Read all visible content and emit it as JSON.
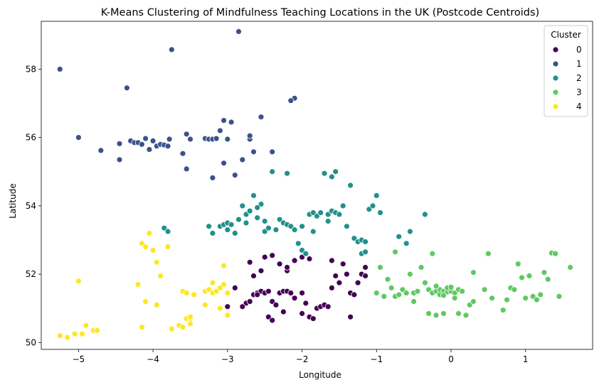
{
  "chart_data": {
    "type": "scatter",
    "title": "K-Means Clustering of Mindfulness Teaching Locations in the UK (Postcode Centroids)",
    "xlabel": "Longitude",
    "ylabel": "Latitude",
    "xlim": [
      -5.5,
      1.9
    ],
    "ylim": [
      49.8,
      59.4
    ],
    "xticks": [
      -5,
      -4,
      -3,
      -2,
      -1,
      0,
      1
    ],
    "yticks": [
      50,
      52,
      54,
      56,
      58
    ],
    "xtick_labels": [
      "−5",
      "−4",
      "−3",
      "−2",
      "−1",
      "0",
      "1"
    ],
    "ytick_labels": [
      "50",
      "52",
      "54",
      "56",
      "58"
    ],
    "grid": false,
    "legend": {
      "title": "Cluster",
      "position": "top-right"
    },
    "series": [
      {
        "name": "0",
        "color": "#440154",
        "points": [
          [
            -2.9,
            51.6
          ],
          [
            -2.75,
            51.15
          ],
          [
            -2.7,
            51.2
          ],
          [
            -2.65,
            51.4
          ],
          [
            -2.6,
            51.45
          ],
          [
            -2.55,
            51.5
          ],
          [
            -2.5,
            51.45
          ],
          [
            -2.45,
            51.5
          ],
          [
            -2.4,
            51.2
          ],
          [
            -2.35,
            51.1
          ],
          [
            -2.3,
            51.45
          ],
          [
            -2.25,
            51.5
          ],
          [
            -2.2,
            51.5
          ],
          [
            -2.15,
            51.45
          ],
          [
            -2.1,
            51.3
          ],
          [
            -2.0,
            51.45
          ],
          [
            -1.95,
            51.15
          ],
          [
            -1.9,
            50.75
          ],
          [
            -1.85,
            50.7
          ],
          [
            -1.8,
            51.0
          ],
          [
            -1.75,
            51.05
          ],
          [
            -1.7,
            51.1
          ],
          [
            -1.65,
            51.05
          ],
          [
            -1.6,
            51.6
          ],
          [
            -1.55,
            51.95
          ],
          [
            -1.5,
            51.75
          ],
          [
            -1.45,
            52.3
          ],
          [
            -1.4,
            52.0
          ],
          [
            -1.35,
            51.45
          ],
          [
            -1.3,
            51.4
          ],
          [
            -1.25,
            51.75
          ],
          [
            -1.2,
            52.0
          ],
          [
            -1.35,
            50.75
          ],
          [
            -2.5,
            52.5
          ],
          [
            -2.4,
            52.55
          ],
          [
            -2.3,
            52.3
          ],
          [
            -2.2,
            52.1
          ],
          [
            -2.1,
            52.4
          ],
          [
            -2.0,
            52.5
          ],
          [
            -1.9,
            52.45
          ],
          [
            -2.7,
            52.35
          ],
          [
            -2.65,
            51.95
          ],
          [
            -2.55,
            52.1
          ],
          [
            -2.45,
            50.75
          ],
          [
            -2.4,
            50.65
          ],
          [
            -2.0,
            50.85
          ],
          [
            -2.25,
            50.9
          ],
          [
            -2.8,
            51.05
          ],
          [
            -3.0,
            51.05
          ],
          [
            -2.2,
            52.2
          ],
          [
            -2.6,
            51.4
          ],
          [
            -1.15,
            52.2
          ],
          [
            -1.15,
            51.95
          ],
          [
            -1.6,
            52.4
          ]
        ]
      },
      {
        "name": "1",
        "color": "#3b528b",
        "points": [
          [
            -5.25,
            58.0
          ],
          [
            -5.0,
            56.0
          ],
          [
            -4.7,
            55.62
          ],
          [
            -4.45,
            55.82
          ],
          [
            -4.45,
            55.35
          ],
          [
            -4.35,
            57.45
          ],
          [
            -4.3,
            55.9
          ],
          [
            -4.25,
            55.85
          ],
          [
            -4.2,
            55.85
          ],
          [
            -4.15,
            55.8
          ],
          [
            -4.1,
            55.97
          ],
          [
            -4.05,
            55.65
          ],
          [
            -4.0,
            55.9
          ],
          [
            -3.95,
            55.75
          ],
          [
            -3.9,
            55.8
          ],
          [
            -3.85,
            55.78
          ],
          [
            -3.8,
            55.75
          ],
          [
            -3.78,
            55.95
          ],
          [
            -3.75,
            58.57
          ],
          [
            -3.6,
            55.53
          ],
          [
            -3.55,
            56.1
          ],
          [
            -3.55,
            55.08
          ],
          [
            -3.3,
            55.97
          ],
          [
            -3.25,
            55.95
          ],
          [
            -3.2,
            55.95
          ],
          [
            -3.15,
            55.97
          ],
          [
            -3.2,
            54.82
          ],
          [
            -3.05,
            56.5
          ],
          [
            -3.05,
            55.25
          ],
          [
            -3.0,
            55.95
          ],
          [
            -2.95,
            56.45
          ],
          [
            -2.9,
            54.9
          ],
          [
            -2.85,
            59.1
          ],
          [
            -2.8,
            55.35
          ],
          [
            -2.7,
            55.95
          ],
          [
            -2.7,
            56.05
          ],
          [
            -2.65,
            55.58
          ],
          [
            -2.55,
            56.6
          ],
          [
            -2.4,
            55.58
          ],
          [
            -2.1,
            57.15
          ],
          [
            -2.15,
            57.08
          ],
          [
            -3.1,
            56.2
          ],
          [
            -3.5,
            55.95
          ]
        ]
      },
      {
        "name": "2",
        "color": "#21918c",
        "points": [
          [
            -3.85,
            53.35
          ],
          [
            -3.8,
            53.25
          ],
          [
            -3.25,
            53.4
          ],
          [
            -3.2,
            53.2
          ],
          [
            -3.1,
            53.4
          ],
          [
            -3.05,
            53.45
          ],
          [
            -3.0,
            53.5
          ],
          [
            -2.95,
            53.45
          ],
          [
            -2.9,
            53.2
          ],
          [
            -2.85,
            53.6
          ],
          [
            -2.8,
            54.0
          ],
          [
            -2.75,
            53.75
          ],
          [
            -2.7,
            53.85
          ],
          [
            -2.65,
            54.3
          ],
          [
            -2.6,
            53.65
          ],
          [
            -2.55,
            54.05
          ],
          [
            -2.5,
            53.25
          ],
          [
            -2.45,
            53.35
          ],
          [
            -2.4,
            55.0
          ],
          [
            -2.35,
            53.3
          ],
          [
            -2.3,
            53.6
          ],
          [
            -2.25,
            53.5
          ],
          [
            -2.2,
            53.45
          ],
          [
            -2.15,
            53.4
          ],
          [
            -2.1,
            53.3
          ],
          [
            -2.2,
            54.95
          ],
          [
            -2.05,
            52.9
          ],
          [
            -2.0,
            52.7
          ],
          [
            -1.95,
            52.6
          ],
          [
            -1.9,
            53.75
          ],
          [
            -1.85,
            53.8
          ],
          [
            -1.8,
            53.7
          ],
          [
            -1.75,
            53.8
          ],
          [
            -1.7,
            54.95
          ],
          [
            -1.65,
            53.75
          ],
          [
            -1.6,
            53.85
          ],
          [
            -1.55,
            53.8
          ],
          [
            -1.5,
            53.75
          ],
          [
            -1.45,
            54.0
          ],
          [
            -1.4,
            53.4
          ],
          [
            -1.35,
            54.6
          ],
          [
            -1.3,
            53.05
          ],
          [
            -1.25,
            52.95
          ],
          [
            -1.2,
            53.0
          ],
          [
            -1.15,
            52.95
          ],
          [
            -1.1,
            53.9
          ],
          [
            -1.05,
            54.0
          ],
          [
            -1.0,
            54.3
          ],
          [
            -0.95,
            53.8
          ],
          [
            -0.7,
            53.1
          ],
          [
            -0.6,
            52.9
          ],
          [
            -0.55,
            53.25
          ],
          [
            -0.35,
            53.75
          ],
          [
            -1.2,
            52.6
          ],
          [
            -1.15,
            52.65
          ],
          [
            -1.55,
            55.0
          ],
          [
            -1.6,
            54.85
          ],
          [
            -2.6,
            53.95
          ],
          [
            -1.85,
            53.25
          ],
          [
            -2.0,
            53.4
          ],
          [
            -2.5,
            53.55
          ],
          [
            -3.0,
            53.3
          ],
          [
            -2.75,
            53.5
          ],
          [
            -1.65,
            53.55
          ]
        ]
      },
      {
        "name": "3",
        "color": "#5ec962",
        "points": [
          [
            -0.95,
            52.2
          ],
          [
            -0.85,
            51.85
          ],
          [
            -0.8,
            51.6
          ],
          [
            -0.75,
            51.35
          ],
          [
            -0.7,
            51.4
          ],
          [
            -0.65,
            51.55
          ],
          [
            -0.6,
            51.45
          ],
          [
            -0.55,
            52.0
          ],
          [
            -0.5,
            51.45
          ],
          [
            -0.45,
            51.5
          ],
          [
            -0.4,
            52.2
          ],
          [
            -0.35,
            51.75
          ],
          [
            -0.3,
            51.55
          ],
          [
            -0.25,
            51.45
          ],
          [
            -0.2,
            51.5
          ],
          [
            -0.15,
            51.55
          ],
          [
            -0.1,
            51.5
          ],
          [
            -0.05,
            51.48
          ],
          [
            0.0,
            51.5
          ],
          [
            0.05,
            51.45
          ],
          [
            0.1,
            51.55
          ],
          [
            0.15,
            51.5
          ],
          [
            -0.2,
            51.65
          ],
          [
            -0.15,
            51.4
          ],
          [
            -0.1,
            51.38
          ],
          [
            -0.05,
            51.6
          ],
          [
            0.0,
            51.62
          ],
          [
            0.05,
            51.3
          ],
          [
            -0.25,
            52.6
          ],
          [
            -0.3,
            50.85
          ],
          [
            -0.2,
            50.8
          ],
          [
            -0.1,
            50.85
          ],
          [
            0.1,
            50.85
          ],
          [
            0.25,
            51.1
          ],
          [
            0.3,
            51.2
          ],
          [
            0.45,
            51.55
          ],
          [
            0.5,
            52.6
          ],
          [
            0.55,
            51.3
          ],
          [
            0.7,
            50.95
          ],
          [
            0.75,
            51.25
          ],
          [
            0.8,
            51.6
          ],
          [
            0.85,
            51.55
          ],
          [
            0.9,
            52.3
          ],
          [
            0.95,
            51.9
          ],
          [
            1.0,
            51.3
          ],
          [
            1.05,
            51.95
          ],
          [
            1.1,
            51.35
          ],
          [
            1.15,
            51.25
          ],
          [
            1.2,
            51.4
          ],
          [
            1.25,
            52.05
          ],
          [
            1.3,
            51.85
          ],
          [
            1.35,
            52.62
          ],
          [
            1.4,
            52.6
          ],
          [
            1.45,
            51.35
          ],
          [
            1.6,
            52.2
          ],
          [
            -0.75,
            52.65
          ],
          [
            -0.9,
            51.35
          ],
          [
            -1.0,
            51.45
          ],
          [
            -0.5,
            51.2
          ],
          [
            0.2,
            50.8
          ],
          [
            0.3,
            52.05
          ]
        ]
      },
      {
        "name": "4",
        "color": "#fde725",
        "points": [
          [
            -5.25,
            50.2
          ],
          [
            -5.15,
            50.15
          ],
          [
            -5.05,
            50.25
          ],
          [
            -4.95,
            50.25
          ],
          [
            -4.9,
            50.5
          ],
          [
            -4.8,
            50.35
          ],
          [
            -4.75,
            50.35
          ],
          [
            -5.0,
            51.8
          ],
          [
            -4.2,
            51.7
          ],
          [
            -4.15,
            52.9
          ],
          [
            -4.1,
            52.8
          ],
          [
            -4.05,
            53.2
          ],
          [
            -4.0,
            52.7
          ],
          [
            -3.95,
            52.35
          ],
          [
            -3.9,
            51.95
          ],
          [
            -3.95,
            51.1
          ],
          [
            -3.8,
            52.8
          ],
          [
            -4.1,
            51.2
          ],
          [
            -4.15,
            50.45
          ],
          [
            -3.75,
            50.4
          ],
          [
            -3.65,
            50.5
          ],
          [
            -3.6,
            51.5
          ],
          [
            -3.55,
            51.45
          ],
          [
            -3.55,
            50.7
          ],
          [
            -3.5,
            50.7
          ],
          [
            -3.45,
            51.4
          ],
          [
            -3.5,
            50.55
          ],
          [
            -3.3,
            51.5
          ],
          [
            -3.25,
            51.55
          ],
          [
            -3.2,
            51.45
          ],
          [
            -3.15,
            51.5
          ],
          [
            -3.1,
            51.6
          ],
          [
            -3.05,
            51.7
          ],
          [
            -3.0,
            51.45
          ],
          [
            -3.05,
            52.25
          ],
          [
            -3.0,
            50.8
          ],
          [
            -3.1,
            51.0
          ],
          [
            -3.3,
            51.1
          ],
          [
            -3.6,
            50.45
          ],
          [
            -3.5,
            50.75
          ],
          [
            -3.2,
            51.75
          ]
        ]
      }
    ]
  }
}
